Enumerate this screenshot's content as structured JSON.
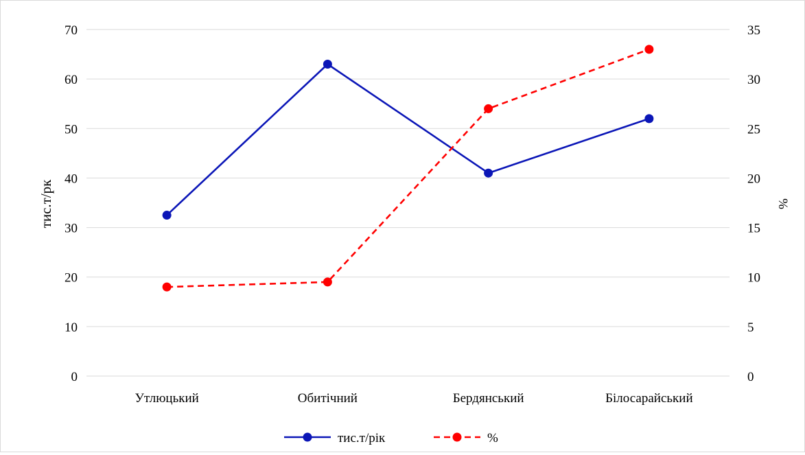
{
  "chart_data": {
    "type": "line",
    "categories": [
      "Утлюцький",
      "Обитічний",
      "Бердянський",
      "Білосарайський"
    ],
    "series": [
      {
        "name": "тис.т/рік",
        "axis": "left",
        "values": [
          32.5,
          63,
          41,
          52
        ],
        "color": "#0b16b7",
        "style": "solid"
      },
      {
        "name": "%",
        "axis": "right",
        "values": [
          9,
          9.5,
          27,
          33
        ],
        "color": "#ff0000",
        "style": "dashed"
      }
    ],
    "ylabel": "тис.т/рк",
    "ylabel_right": "%",
    "ylim": [
      0,
      70
    ],
    "ylim_right": [
      0,
      35
    ],
    "yticks": [
      0,
      10,
      20,
      30,
      40,
      50,
      60,
      70
    ],
    "yticks_right": [
      0,
      5,
      10,
      15,
      20,
      25,
      30,
      35
    ],
    "grid": true,
    "legend_position": "bottom",
    "gridline_color": "#d9d9d9"
  }
}
